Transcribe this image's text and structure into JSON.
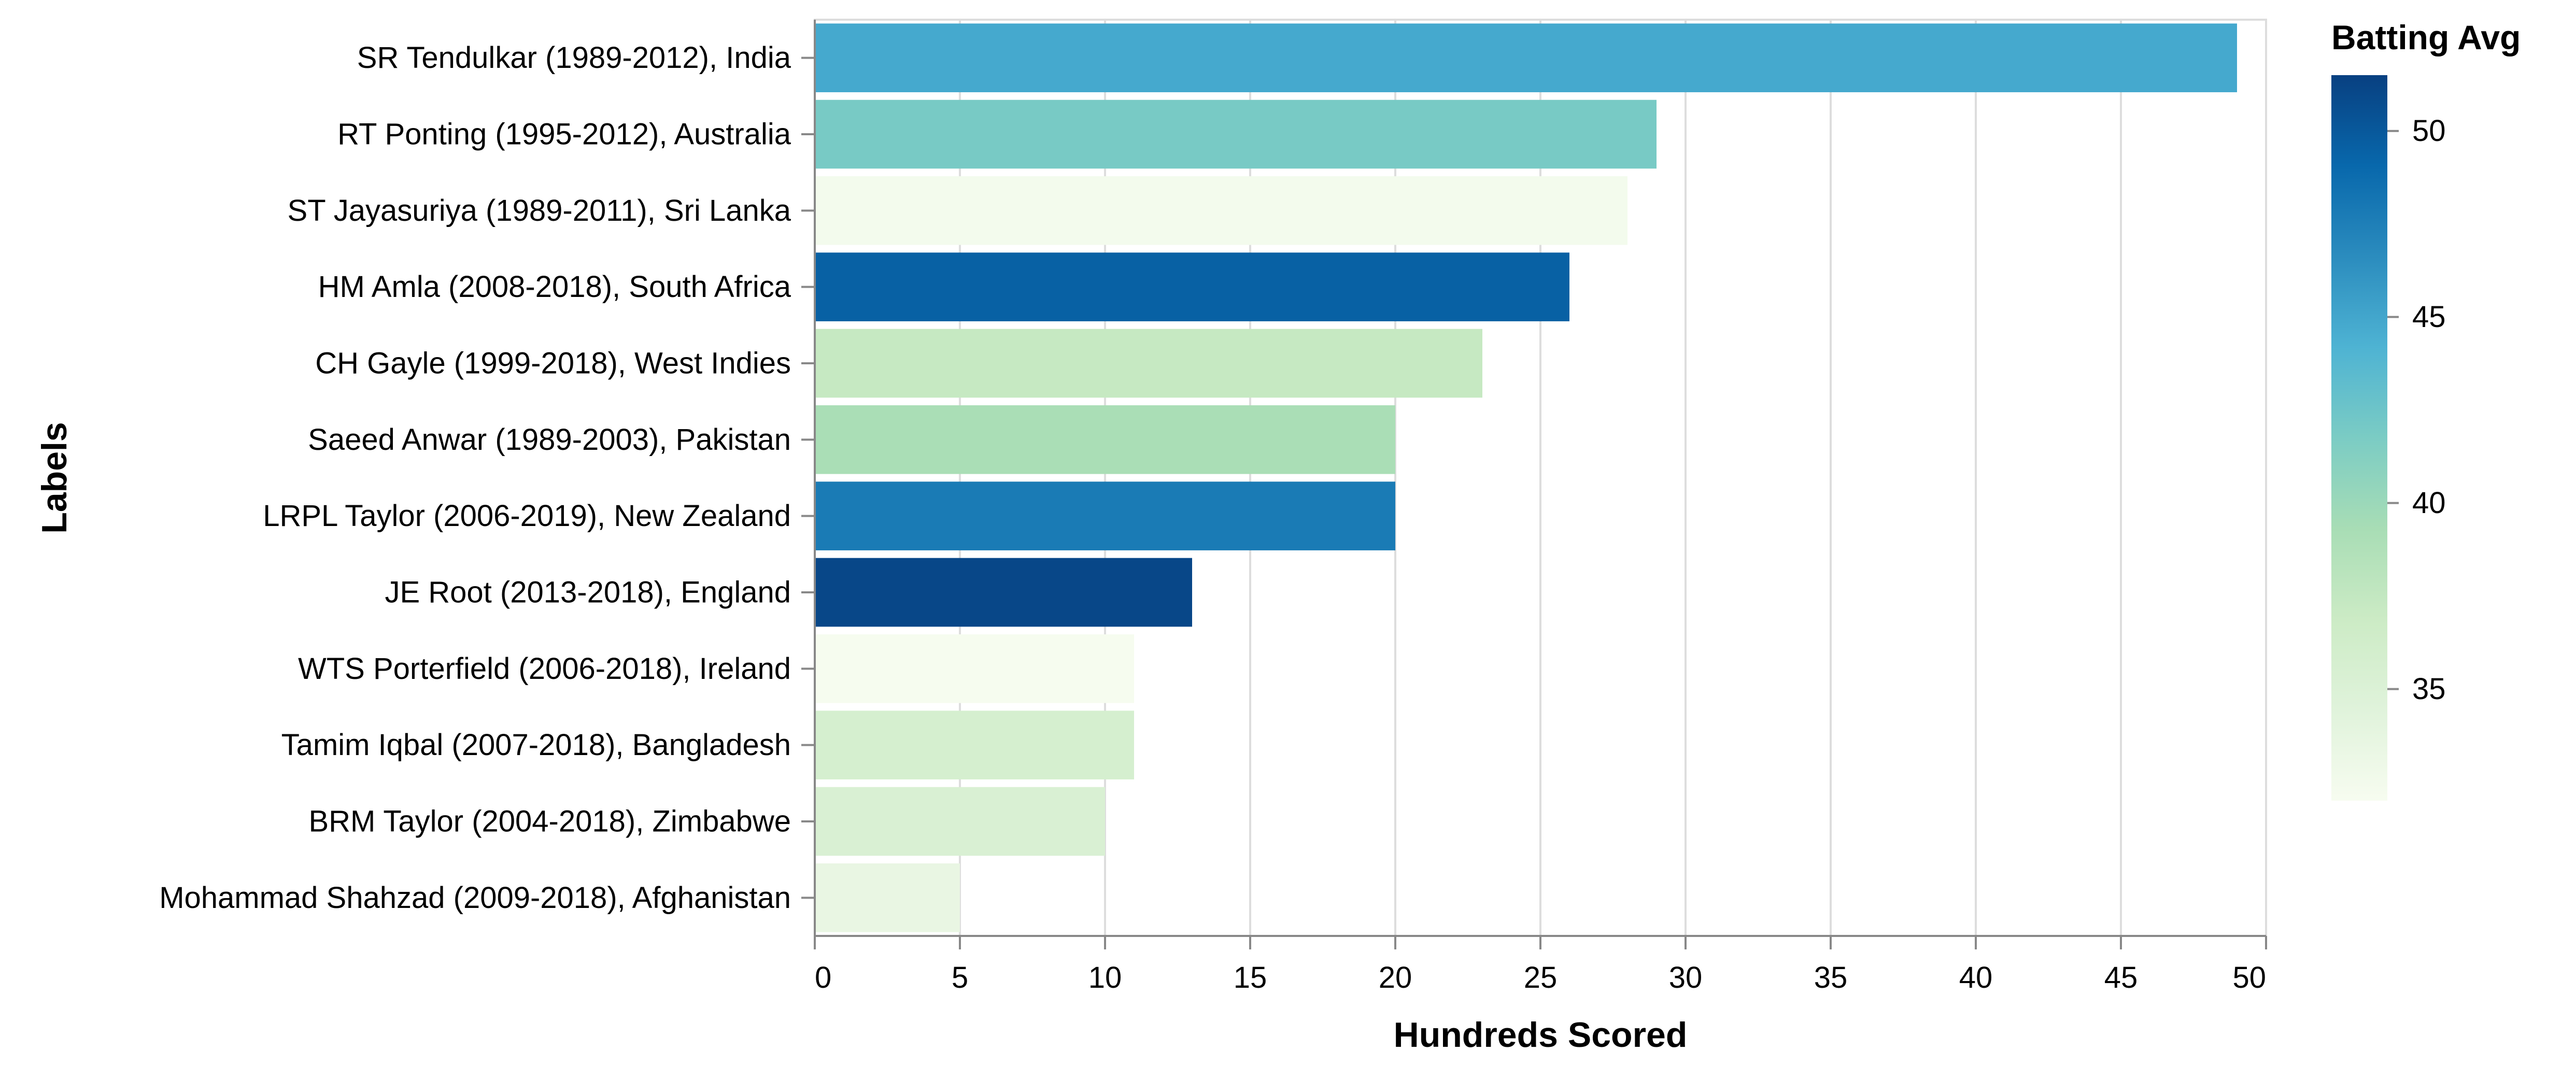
{
  "chart_data": {
    "type": "bar",
    "orientation": "horizontal",
    "xlabel": "Hundreds Scored",
    "ylabel": "Labels",
    "xlim": [
      0,
      50
    ],
    "x_ticks": [
      0,
      5,
      10,
      15,
      20,
      25,
      30,
      35,
      40,
      45,
      50
    ],
    "grid": true,
    "categories": [
      "SR Tendulkar (1989-2012), India",
      "RT Ponting (1995-2012), Australia",
      "ST Jayasuriya (1989-2011), Sri Lanka",
      "HM Amla (2008-2018), South Africa",
      "CH Gayle (1999-2018), West Indies",
      "Saeed Anwar (1989-2003), Pakistan",
      "LRPL Taylor (2006-2019), New Zealand",
      "JE Root (2013-2018), England",
      "WTS Porterfield (2006-2018), Ireland",
      "Tamim Iqbal (2007-2018), Bangladesh",
      "BRM Taylor (2004-2018), Zimbabwe",
      "Mohammad Shahzad (2009-2018), Afghanistan"
    ],
    "values": [
      49,
      29,
      28,
      26,
      23,
      20,
      20,
      13,
      11,
      11,
      10,
      5
    ],
    "color_values": [
      44.8,
      41.9,
      32.4,
      49.5,
      37.3,
      39.2,
      47.8,
      51.1,
      32.1,
      35.8,
      35.3,
      33.5
    ],
    "color_legend": {
      "title": "Batting Avg",
      "domain": [
        32,
        51.5
      ],
      "ticks": [
        35,
        40,
        45,
        50
      ],
      "placement": "right",
      "scheme": [
        "#f7fcf0",
        "#e0f3db",
        "#ccebc5",
        "#a8ddb5",
        "#7bccc4",
        "#4eb3d3",
        "#2b8cbe",
        "#0868ac",
        "#084081"
      ]
    }
  }
}
